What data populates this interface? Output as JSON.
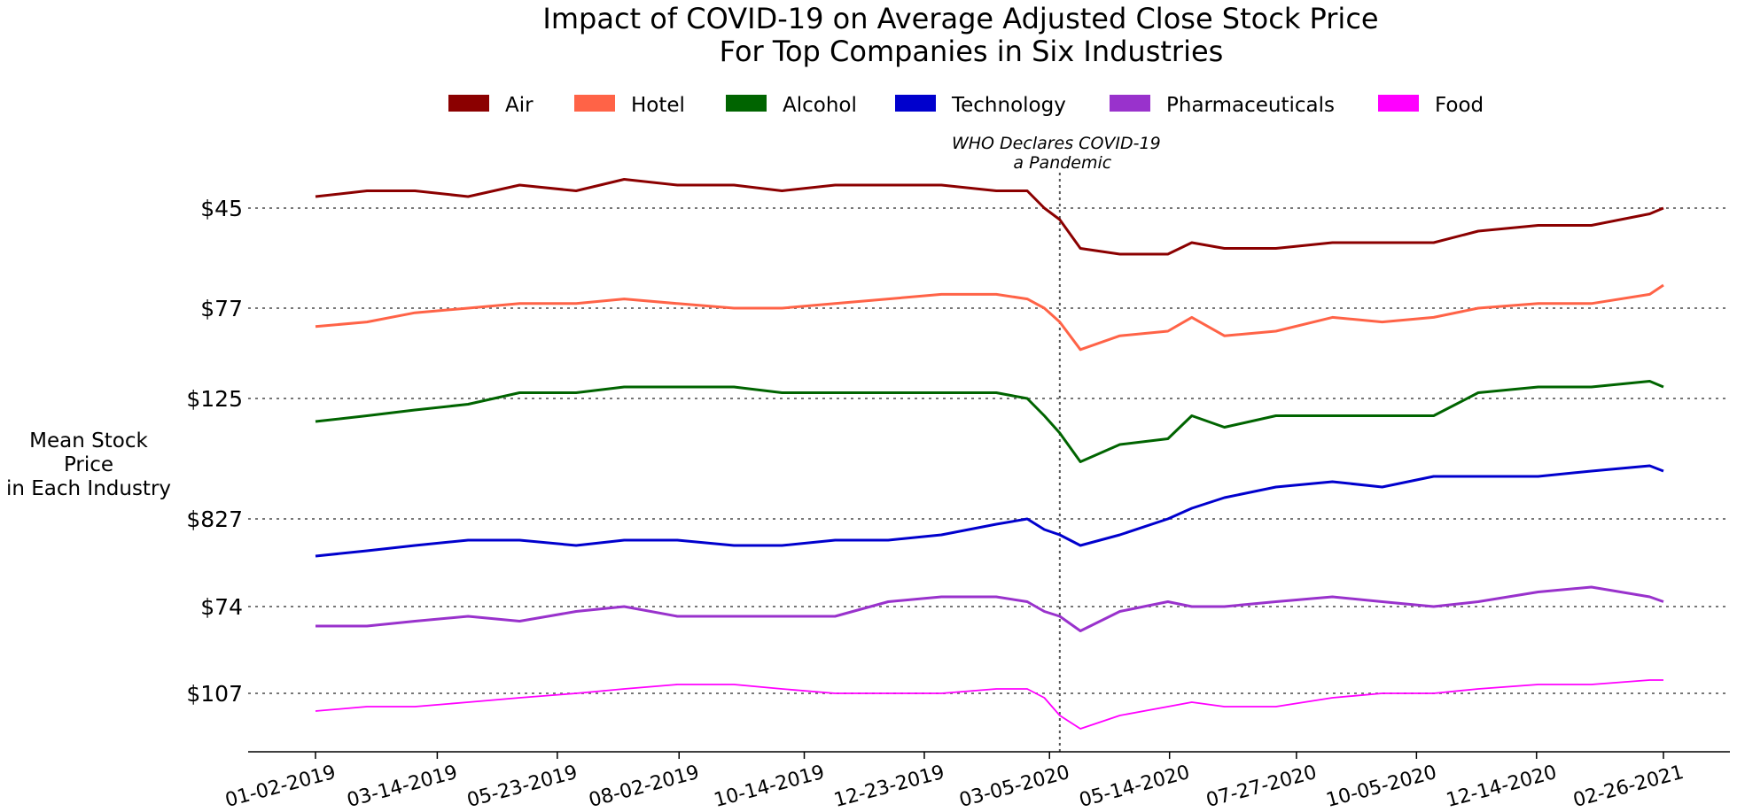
{
  "chart_data": {
    "type": "line",
    "title": [
      "Impact of COVID-19 on Average Adjusted Close Stock Price",
      "For Top Companies in Six Industries"
    ],
    "ylabel": [
      "Mean Stock",
      "Price",
      "in Each Industry"
    ],
    "xlabel": "",
    "legend": {
      "placement": "top-center"
    },
    "x_range": [
      "2019-01-02",
      "2021-02-26"
    ],
    "x_ticks": [
      "01-02-2019",
      "03-14-2019",
      "05-23-2019",
      "08-02-2019",
      "10-14-2019",
      "12-23-2019",
      "03-05-2020",
      "05-14-2020",
      "07-27-2020",
      "10-05-2020",
      "12-14-2020",
      "02-26-2021"
    ],
    "x_tick_dates": [
      "2019-01-02",
      "2019-03-14",
      "2019-05-23",
      "2019-08-02",
      "2019-10-14",
      "2019-12-23",
      "2020-03-05",
      "2020-05-14",
      "2020-07-27",
      "2020-10-05",
      "2020-12-14",
      "2021-02-26"
    ],
    "annotation": {
      "date": "2020-03-11",
      "text": [
        "WHO Declares COVID-19",
        "a Pandemic"
      ]
    },
    "grid": "dotted reference line per series",
    "series": [
      {
        "name": "Air",
        "color": "#8b0000",
        "reference_label": "$45",
        "reference_value": 45,
        "points": [
          [
            "2019-01-02",
            47
          ],
          [
            "2019-02-01",
            48
          ],
          [
            "2019-03-01",
            48
          ],
          [
            "2019-04-01",
            47
          ],
          [
            "2019-05-01",
            49
          ],
          [
            "2019-06-03",
            48
          ],
          [
            "2019-07-01",
            50
          ],
          [
            "2019-08-01",
            49
          ],
          [
            "2019-09-03",
            49
          ],
          [
            "2019-10-01",
            48
          ],
          [
            "2019-11-01",
            49
          ],
          [
            "2019-12-02",
            49
          ],
          [
            "2020-01-02",
            49
          ],
          [
            "2020-02-03",
            48
          ],
          [
            "2020-02-21",
            48
          ],
          [
            "2020-03-02",
            45
          ],
          [
            "2020-03-11",
            43
          ],
          [
            "2020-03-23",
            38
          ],
          [
            "2020-04-15",
            37
          ],
          [
            "2020-05-13",
            37
          ],
          [
            "2020-05-27",
            39
          ],
          [
            "2020-06-15",
            38
          ],
          [
            "2020-07-15",
            38
          ],
          [
            "2020-08-17",
            39
          ],
          [
            "2020-09-15",
            39
          ],
          [
            "2020-10-15",
            39
          ],
          [
            "2020-11-10",
            41
          ],
          [
            "2020-12-15",
            42
          ],
          [
            "2021-01-15",
            42
          ],
          [
            "2021-02-18",
            44
          ],
          [
            "2021-02-26",
            45
          ]
        ]
      },
      {
        "name": "Hotel",
        "color": "#ff6347",
        "reference_label": "$77",
        "reference_value": 77,
        "points": [
          [
            "2019-01-02",
            73
          ],
          [
            "2019-02-01",
            74
          ],
          [
            "2019-03-01",
            76
          ],
          [
            "2019-04-01",
            77
          ],
          [
            "2019-05-01",
            78
          ],
          [
            "2019-06-03",
            78
          ],
          [
            "2019-07-01",
            79
          ],
          [
            "2019-08-01",
            78
          ],
          [
            "2019-09-03",
            77
          ],
          [
            "2019-10-01",
            77
          ],
          [
            "2019-11-01",
            78
          ],
          [
            "2019-12-02",
            79
          ],
          [
            "2020-01-02",
            80
          ],
          [
            "2020-02-03",
            80
          ],
          [
            "2020-02-21",
            79
          ],
          [
            "2020-03-02",
            77
          ],
          [
            "2020-03-11",
            74
          ],
          [
            "2020-03-23",
            68
          ],
          [
            "2020-04-15",
            71
          ],
          [
            "2020-05-13",
            72
          ],
          [
            "2020-05-27",
            75
          ],
          [
            "2020-06-15",
            71
          ],
          [
            "2020-07-15",
            72
          ],
          [
            "2020-08-17",
            75
          ],
          [
            "2020-09-15",
            74
          ],
          [
            "2020-10-15",
            75
          ],
          [
            "2020-11-10",
            77
          ],
          [
            "2020-12-15",
            78
          ],
          [
            "2021-01-15",
            78
          ],
          [
            "2021-02-18",
            80
          ],
          [
            "2021-02-26",
            82
          ]
        ]
      },
      {
        "name": "Alcohol",
        "color": "#006400",
        "reference_label": "$125",
        "reference_value": 125,
        "points": [
          [
            "2019-01-02",
            121
          ],
          [
            "2019-02-01",
            122
          ],
          [
            "2019-03-01",
            123
          ],
          [
            "2019-04-01",
            124
          ],
          [
            "2019-05-01",
            126
          ],
          [
            "2019-06-03",
            126
          ],
          [
            "2019-07-01",
            127
          ],
          [
            "2019-08-01",
            127
          ],
          [
            "2019-09-03",
            127
          ],
          [
            "2019-10-01",
            126
          ],
          [
            "2019-11-01",
            126
          ],
          [
            "2019-12-02",
            126
          ],
          [
            "2020-01-02",
            126
          ],
          [
            "2020-02-03",
            126
          ],
          [
            "2020-02-21",
            125
          ],
          [
            "2020-03-02",
            122
          ],
          [
            "2020-03-11",
            119
          ],
          [
            "2020-03-23",
            114
          ],
          [
            "2020-04-15",
            117
          ],
          [
            "2020-05-13",
            118
          ],
          [
            "2020-05-27",
            122
          ],
          [
            "2020-06-15",
            120
          ],
          [
            "2020-07-15",
            122
          ],
          [
            "2020-08-17",
            122
          ],
          [
            "2020-09-15",
            122
          ],
          [
            "2020-10-15",
            122
          ],
          [
            "2020-11-10",
            126
          ],
          [
            "2020-12-15",
            127
          ],
          [
            "2021-01-15",
            127
          ],
          [
            "2021-02-18",
            128
          ],
          [
            "2021-02-26",
            127
          ]
        ]
      },
      {
        "name": "Technology",
        "color": "#0000cd",
        "reference_label": "$827",
        "reference_value": 827,
        "points": [
          [
            "2019-01-02",
            820
          ],
          [
            "2019-02-01",
            821
          ],
          [
            "2019-03-01",
            822
          ],
          [
            "2019-04-01",
            823
          ],
          [
            "2019-05-01",
            823
          ],
          [
            "2019-06-03",
            822
          ],
          [
            "2019-07-01",
            823
          ],
          [
            "2019-08-01",
            823
          ],
          [
            "2019-09-03",
            822
          ],
          [
            "2019-10-01",
            822
          ],
          [
            "2019-11-01",
            823
          ],
          [
            "2019-12-02",
            823
          ],
          [
            "2020-01-02",
            824
          ],
          [
            "2020-02-03",
            826
          ],
          [
            "2020-02-21",
            827
          ],
          [
            "2020-03-02",
            825
          ],
          [
            "2020-03-11",
            824
          ],
          [
            "2020-03-23",
            822
          ],
          [
            "2020-04-15",
            824
          ],
          [
            "2020-05-13",
            827
          ],
          [
            "2020-05-27",
            829
          ],
          [
            "2020-06-15",
            831
          ],
          [
            "2020-07-15",
            833
          ],
          [
            "2020-08-17",
            834
          ],
          [
            "2020-09-15",
            833
          ],
          [
            "2020-10-15",
            835
          ],
          [
            "2020-11-10",
            835
          ],
          [
            "2020-12-15",
            835
          ],
          [
            "2021-01-15",
            836
          ],
          [
            "2021-02-18",
            837
          ],
          [
            "2021-02-26",
            836
          ]
        ]
      },
      {
        "name": "Pharmaceuticals",
        "color": "#9932cc",
        "reference_label": "$74",
        "reference_value": 74,
        "points": [
          [
            "2019-01-02",
            70
          ],
          [
            "2019-02-01",
            70
          ],
          [
            "2019-03-01",
            71
          ],
          [
            "2019-04-01",
            72
          ],
          [
            "2019-05-01",
            71
          ],
          [
            "2019-06-03",
            73
          ],
          [
            "2019-07-01",
            74
          ],
          [
            "2019-08-01",
            72
          ],
          [
            "2019-09-03",
            72
          ],
          [
            "2019-10-01",
            72
          ],
          [
            "2019-11-01",
            72
          ],
          [
            "2019-12-02",
            75
          ],
          [
            "2020-01-02",
            76
          ],
          [
            "2020-02-03",
            76
          ],
          [
            "2020-02-21",
            75
          ],
          [
            "2020-03-02",
            73
          ],
          [
            "2020-03-11",
            72
          ],
          [
            "2020-03-23",
            69
          ],
          [
            "2020-04-15",
            73
          ],
          [
            "2020-05-13",
            75
          ],
          [
            "2020-05-27",
            74
          ],
          [
            "2020-06-15",
            74
          ],
          [
            "2020-07-15",
            75
          ],
          [
            "2020-08-17",
            76
          ],
          [
            "2020-09-15",
            75
          ],
          [
            "2020-10-15",
            74
          ],
          [
            "2020-11-10",
            75
          ],
          [
            "2020-12-15",
            77
          ],
          [
            "2021-01-15",
            78
          ],
          [
            "2021-02-18",
            76
          ],
          [
            "2021-02-26",
            75
          ]
        ]
      },
      {
        "name": "Food",
        "color": "#ff00ff",
        "reference_label": "$107",
        "reference_value": 107,
        "points": [
          [
            "2019-01-02",
            103
          ],
          [
            "2019-02-01",
            104
          ],
          [
            "2019-03-01",
            104
          ],
          [
            "2019-04-01",
            105
          ],
          [
            "2019-05-01",
            106
          ],
          [
            "2019-06-03",
            107
          ],
          [
            "2019-07-01",
            108
          ],
          [
            "2019-08-01",
            109
          ],
          [
            "2019-09-03",
            109
          ],
          [
            "2019-10-01",
            108
          ],
          [
            "2019-11-01",
            107
          ],
          [
            "2019-12-02",
            107
          ],
          [
            "2020-01-02",
            107
          ],
          [
            "2020-02-03",
            108
          ],
          [
            "2020-02-21",
            108
          ],
          [
            "2020-03-02",
            106
          ],
          [
            "2020-03-11",
            102
          ],
          [
            "2020-03-23",
            99
          ],
          [
            "2020-04-15",
            102
          ],
          [
            "2020-05-13",
            104
          ],
          [
            "2020-05-27",
            105
          ],
          [
            "2020-06-15",
            104
          ],
          [
            "2020-07-15",
            104
          ],
          [
            "2020-08-17",
            106
          ],
          [
            "2020-09-15",
            107
          ],
          [
            "2020-10-15",
            107
          ],
          [
            "2020-11-10",
            108
          ],
          [
            "2020-12-15",
            109
          ],
          [
            "2021-01-15",
            109
          ],
          [
            "2021-02-18",
            110
          ],
          [
            "2021-02-26",
            110
          ]
        ]
      }
    ]
  }
}
